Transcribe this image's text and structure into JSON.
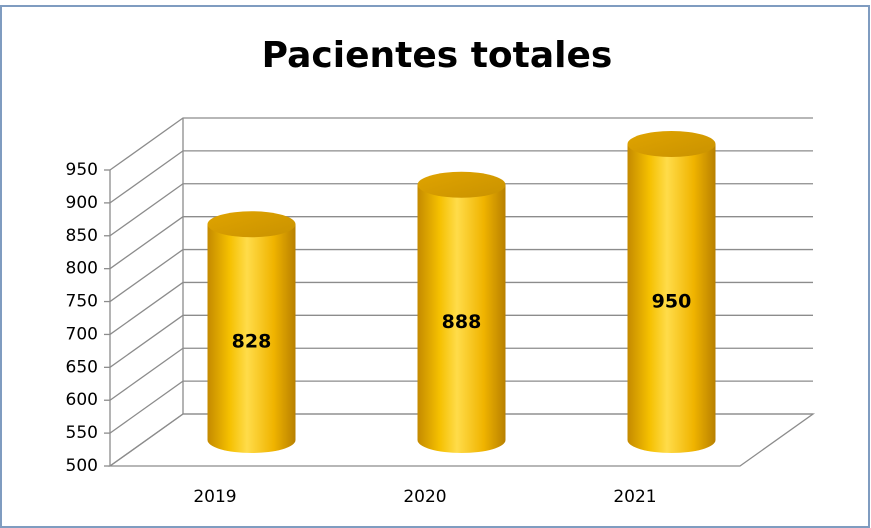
{
  "chart_data": {
    "type": "bar",
    "title": "Pacientes totales",
    "categories": [
      "2019",
      "2020",
      "2021"
    ],
    "values": [
      828,
      888,
      950
    ],
    "color": "#f2b800",
    "ylim": [
      500,
      950
    ],
    "yticks": [
      500,
      550,
      600,
      650,
      700,
      750,
      800,
      850,
      900,
      950
    ],
    "grid": true
  }
}
